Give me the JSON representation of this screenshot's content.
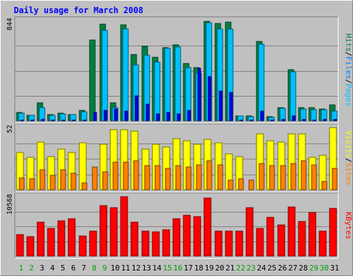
{
  "chart_data": {
    "type": "bar",
    "title": "Daily usage for March 2008",
    "categories": [
      "1",
      "2",
      "3",
      "4",
      "5",
      "6",
      "7",
      "8",
      "9",
      "10",
      "11",
      "12",
      "13",
      "14",
      "15",
      "16",
      "17",
      "18",
      "19",
      "20",
      "21",
      "22",
      "23",
      "24",
      "25",
      "26",
      "27",
      "28",
      "29",
      "30",
      "31"
    ],
    "weekend_days": [
      "1",
      "2",
      "8",
      "9",
      "15",
      "16",
      "22",
      "23",
      "29",
      "30"
    ],
    "panels": [
      {
        "id": "hits-files-pages",
        "ymax_label": "844",
        "ylim": [
          0,
          844
        ],
        "series": [
          {
            "name": "Hits",
            "color": "#008040",
            "values": [
              70,
              47,
              149,
              54,
              64,
              55,
              87,
              680,
              817,
              152,
              810,
              561,
              631,
              534,
              619,
              640,
              481,
              447,
              841,
              823,
              830,
              43,
              40,
              672,
              34,
              111,
              433,
              113,
              111,
              99,
              136
            ]
          },
          {
            "name": "Files",
            "color": "#00C0FF",
            "values": [
              63,
              44,
              109,
              49,
              56,
              50,
              78,
              0,
              762,
              110,
              777,
              473,
              551,
              497,
              609,
              623,
              448,
              399,
              828,
              772,
              777,
              38,
              36,
              648,
              31,
              103,
              412,
              100,
              96,
              92,
              84
            ]
          },
          {
            "name": "Pages",
            "color": "#0000FF",
            "values": [
              8,
              5,
              10,
              6,
              6,
              5,
              6,
              70,
              90,
              100,
              80,
              210,
              140,
              60,
              70,
              60,
              90,
              440,
              370,
              250,
              240,
              4,
              3,
              80,
              2,
              12,
              40,
              10,
              8,
              9,
              12
            ]
          }
        ]
      },
      {
        "id": "visits-sites",
        "ymax_label": "52",
        "ylim": [
          0,
          52
        ],
        "series": [
          {
            "name": "Visits",
            "color": "#FFFF00",
            "values": [
              31,
              27,
              40,
              28,
              34,
              31,
              39,
              0,
              38,
              50,
              50,
              49,
              34,
              38,
              36,
              43,
              41,
              38,
              42,
              39,
              30,
              28,
              0,
              47,
              41,
              40,
              47,
              47,
              27,
              29,
              52
            ]
          },
          {
            "name": "Sites",
            "color": "#FF8000",
            "values": [
              10,
              9,
              17,
              12,
              17,
              14,
              6,
              19,
              15,
              23,
              23,
              24,
              20,
              20,
              18,
              20,
              19,
              21,
              24,
              21,
              8,
              9,
              8,
              22,
              20,
              20,
              22,
              24,
              21,
              7,
              18
            ]
          }
        ]
      },
      {
        "id": "kbytes",
        "ymax_label": "10568",
        "ylim": [
          0,
          10568
        ],
        "series": [
          {
            "name": "KBytes",
            "color": "#FF0000",
            "values": [
              3850,
              3410,
              5990,
              4900,
              6290,
              6580,
              3560,
              4460,
              8960,
              8620,
              10530,
              6020,
              4390,
              4270,
              4670,
              6590,
              7240,
              6990,
              10300,
              4390,
              4390,
              4390,
              8620,
              4920,
              6900,
              5510,
              8740,
              6200,
              7740,
              4390,
              8540
            ]
          }
        ]
      }
    ],
    "legend": {
      "panel1": [
        {
          "text": "Hits",
          "color": "#008040"
        },
        {
          "text": "/",
          "color": "#000000"
        },
        {
          "text": "Files",
          "color": "#0080FF"
        },
        {
          "text": "/",
          "color": "#000000"
        },
        {
          "text": "Pages",
          "color": "#00C0FF"
        }
      ],
      "panel2": [
        {
          "text": "Visits",
          "color": "#FFFF00"
        },
        {
          "text": "/",
          "color": "#000000"
        },
        {
          "text": "Sites",
          "color": "#FF8000"
        }
      ],
      "panel3": [
        {
          "text": "KBytes",
          "color": "#FF0000"
        }
      ]
    },
    "colors": {
      "frame_bg": "#C0C0C0",
      "plot_bg": "#C0C0C0",
      "title": "#0000FF",
      "weekday_label": "#000000",
      "weekend_label": "#00A000"
    }
  }
}
